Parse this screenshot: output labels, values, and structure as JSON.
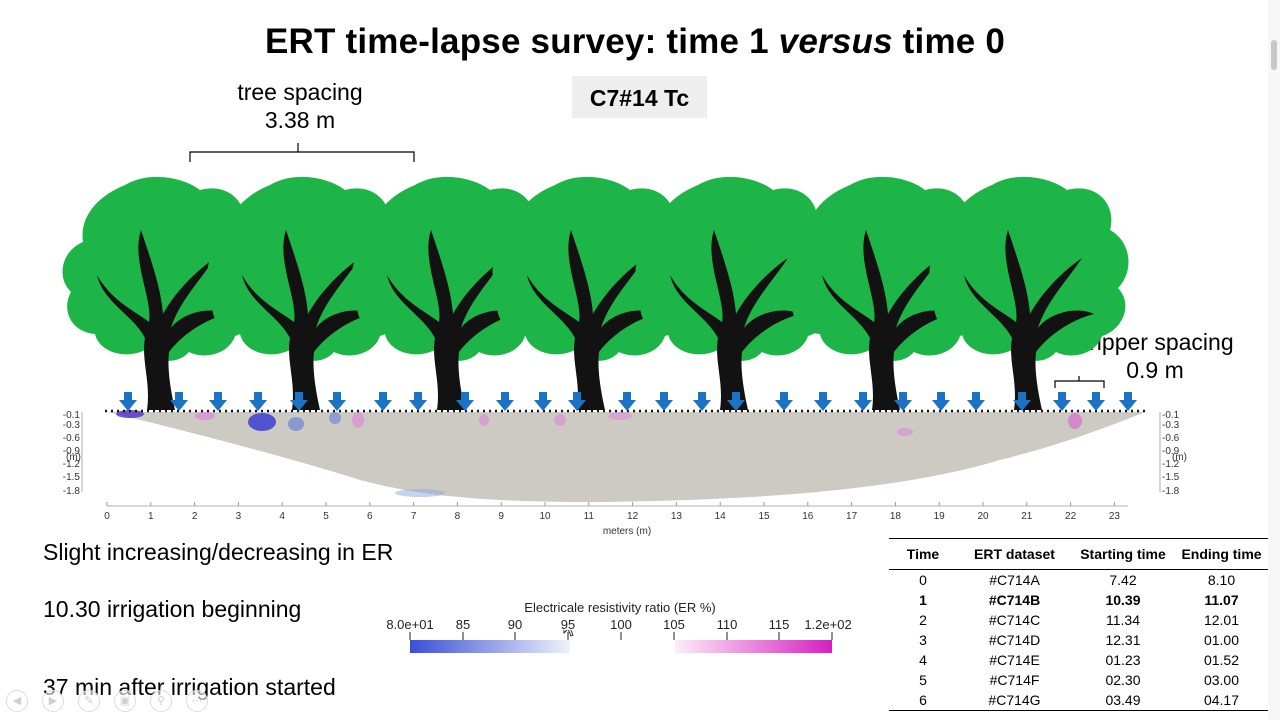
{
  "slide": {
    "title_prefix": "ERT time-lapse survey: time 1 ",
    "title_italic": "versus",
    "title_suffix": " time 0",
    "dataset_code": "C7#14 Tc",
    "tree_spacing_label": "tree spacing",
    "tree_spacing_value": "3.38 m",
    "dripper_spacing_label": "dripper spacing",
    "dripper_spacing_value": "0.9 m"
  },
  "section_plot": {
    "x_axis_label": "meters (m)",
    "x_ticks": [
      "0",
      "1",
      "2",
      "3",
      "4",
      "5",
      "6",
      "7",
      "8",
      "9",
      "10",
      "11",
      "12",
      "13",
      "14",
      "15",
      "16",
      "17",
      "18",
      "19",
      "20",
      "21",
      "22",
      "23"
    ],
    "depth_ticks": [
      "-0.1",
      "-0.3",
      "-0.6",
      "-0.9",
      "-1.2",
      "-1.5",
      "-1.8"
    ],
    "depth_unit": "(m)",
    "background_color": "#cdcac4",
    "tree_color": "#1eb548",
    "dripper_color": "#1a73c5"
  },
  "notes": {
    "line1": "Slight increasing/decreasing in ER",
    "line2": "10.30 irrigation beginning",
    "line3": "37 min after irrigation started"
  },
  "colorbar": {
    "title": "Electricale resistivity ratio (ER %)",
    "ticks": [
      "8.0e+01",
      "85",
      "90",
      "95",
      "100",
      "105",
      "110",
      "115",
      "1.2e+02"
    ],
    "low_color": "#3b4fd6",
    "high_color": "#d61fc2"
  },
  "table": {
    "headers": [
      "Time",
      "ERT dataset",
      "Starting time",
      "Ending time"
    ],
    "rows": [
      {
        "time": "0",
        "dataset": "#C714A",
        "start": "7.42",
        "end": "8.10"
      },
      {
        "time": "1",
        "dataset": "#C714B",
        "start": "10.39",
        "end": "11.07"
      },
      {
        "time": "2",
        "dataset": "#C714C",
        "start": "11.34",
        "end": "12.01"
      },
      {
        "time": "3",
        "dataset": "#C714D",
        "start": "12.31",
        "end": "01.00"
      },
      {
        "time": "4",
        "dataset": "#C714E",
        "start": "01.23",
        "end": "01.52"
      },
      {
        "time": "5",
        "dataset": "#C714F",
        "start": "02.30",
        "end": "03.00"
      },
      {
        "time": "6",
        "dataset": "#C714G",
        "start": "03.49",
        "end": "04.17"
      }
    ]
  },
  "player_controls": [
    "prev-icon",
    "next-icon",
    "pen-icon",
    "slides-icon",
    "zoom-icon",
    "more-icon"
  ]
}
